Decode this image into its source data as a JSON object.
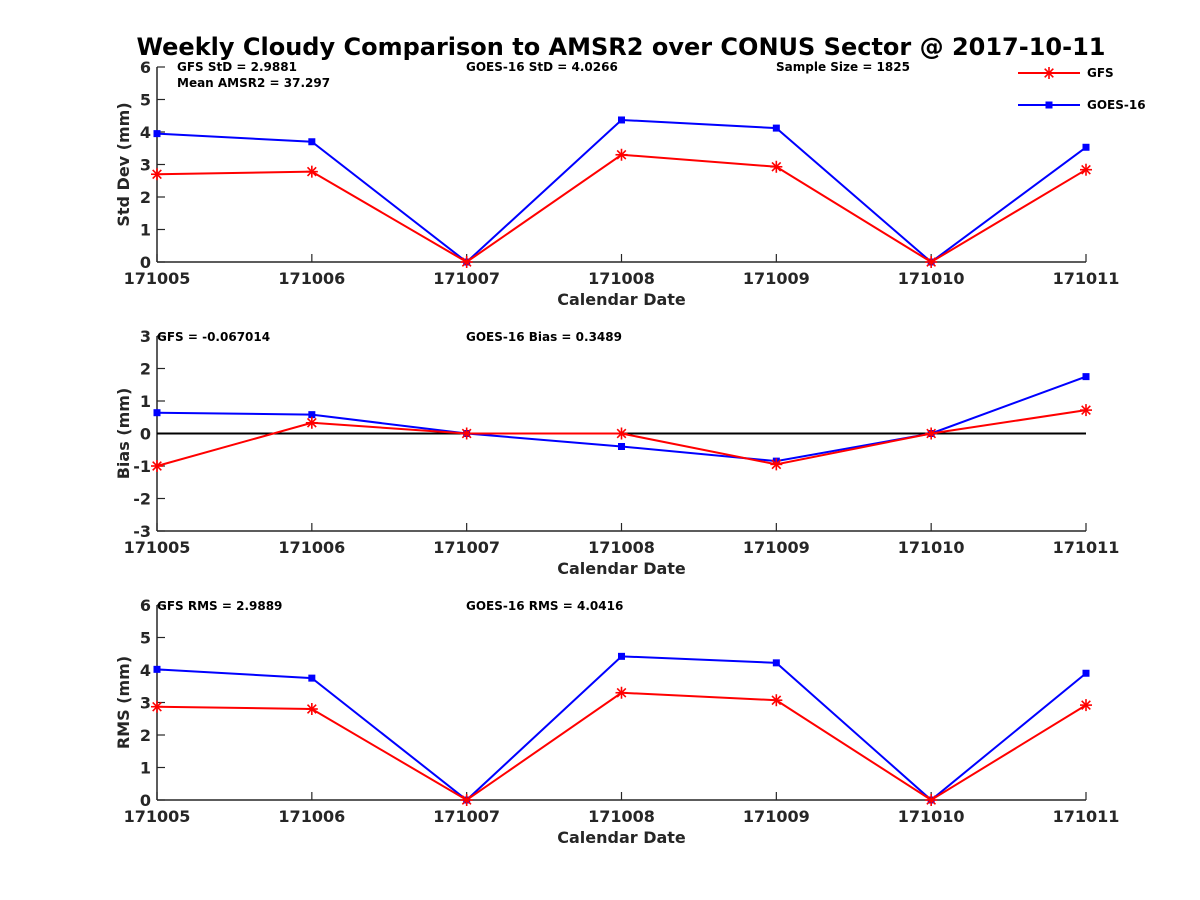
{
  "chart_data": {
    "title": "Weekly Cloudy Comparison to AMSR2 over CONUS Sector @ 2017-10-11",
    "legend": {
      "placement": "top-right",
      "entries": [
        {
          "name": "GFS",
          "color": "#ff0000",
          "marker": "star"
        },
        {
          "name": "GOES-16",
          "color": "#0000ff",
          "marker": "square"
        }
      ]
    },
    "categories": [
      "171005",
      "171006",
      "171007",
      "171008",
      "171009",
      "171010",
      "171011"
    ],
    "panels": [
      {
        "type": "line",
        "xlabel": "Calendar Date",
        "ylabel": "Std Dev (mm)",
        "ylim": [
          0,
          6
        ],
        "yticks": [
          "0",
          "1",
          "2",
          "3",
          "4",
          "5",
          "6"
        ],
        "zero_line": false,
        "annotations": [
          "GFS StD = 2.9881",
          "Mean AMSR2 = 37.297",
          "GOES-16 StD = 4.0266",
          "Sample Size = 1825"
        ],
        "series": [
          {
            "name": "GFS",
            "values": [
              2.7,
              2.78,
              0.0,
              3.3,
              2.93,
              0.0,
              2.84
            ]
          },
          {
            "name": "GOES-16",
            "values": [
              3.95,
              3.7,
              0.0,
              4.37,
              4.12,
              0.0,
              3.53
            ]
          }
        ]
      },
      {
        "type": "line",
        "xlabel": "Calendar Date",
        "ylabel": "Bias (mm)",
        "ylim": [
          -3,
          3
        ],
        "yticks": [
          "-3",
          "-2",
          "-1",
          "0",
          "1",
          "2",
          "3"
        ],
        "zero_line": true,
        "annotations": [
          "GFS = -0.067014",
          "GOES-16 Bias  = 0.3489"
        ],
        "series": [
          {
            "name": "GFS",
            "values": [
              -1.0,
              0.33,
              0.0,
              0.0,
              -0.95,
              0.0,
              0.72
            ]
          },
          {
            "name": "GOES-16",
            "values": [
              0.64,
              0.58,
              0.0,
              -0.4,
              -0.85,
              0.0,
              1.75
            ]
          }
        ]
      },
      {
        "type": "line",
        "xlabel": "Calendar Date",
        "ylabel": "RMS (mm)",
        "ylim": [
          0,
          6
        ],
        "yticks": [
          "0",
          "1",
          "2",
          "3",
          "4",
          "5",
          "6"
        ],
        "zero_line": false,
        "annotations": [
          "GFS RMS = 2.9889",
          "GOES-16 RMS = 4.0416"
        ],
        "series": [
          {
            "name": "GFS",
            "values": [
              2.87,
              2.8,
              0.0,
              3.3,
              3.07,
              0.0,
              2.92
            ]
          },
          {
            "name": "GOES-16",
            "values": [
              4.02,
              3.75,
              0.0,
              4.42,
              4.22,
              0.0,
              3.9
            ]
          }
        ]
      }
    ]
  }
}
